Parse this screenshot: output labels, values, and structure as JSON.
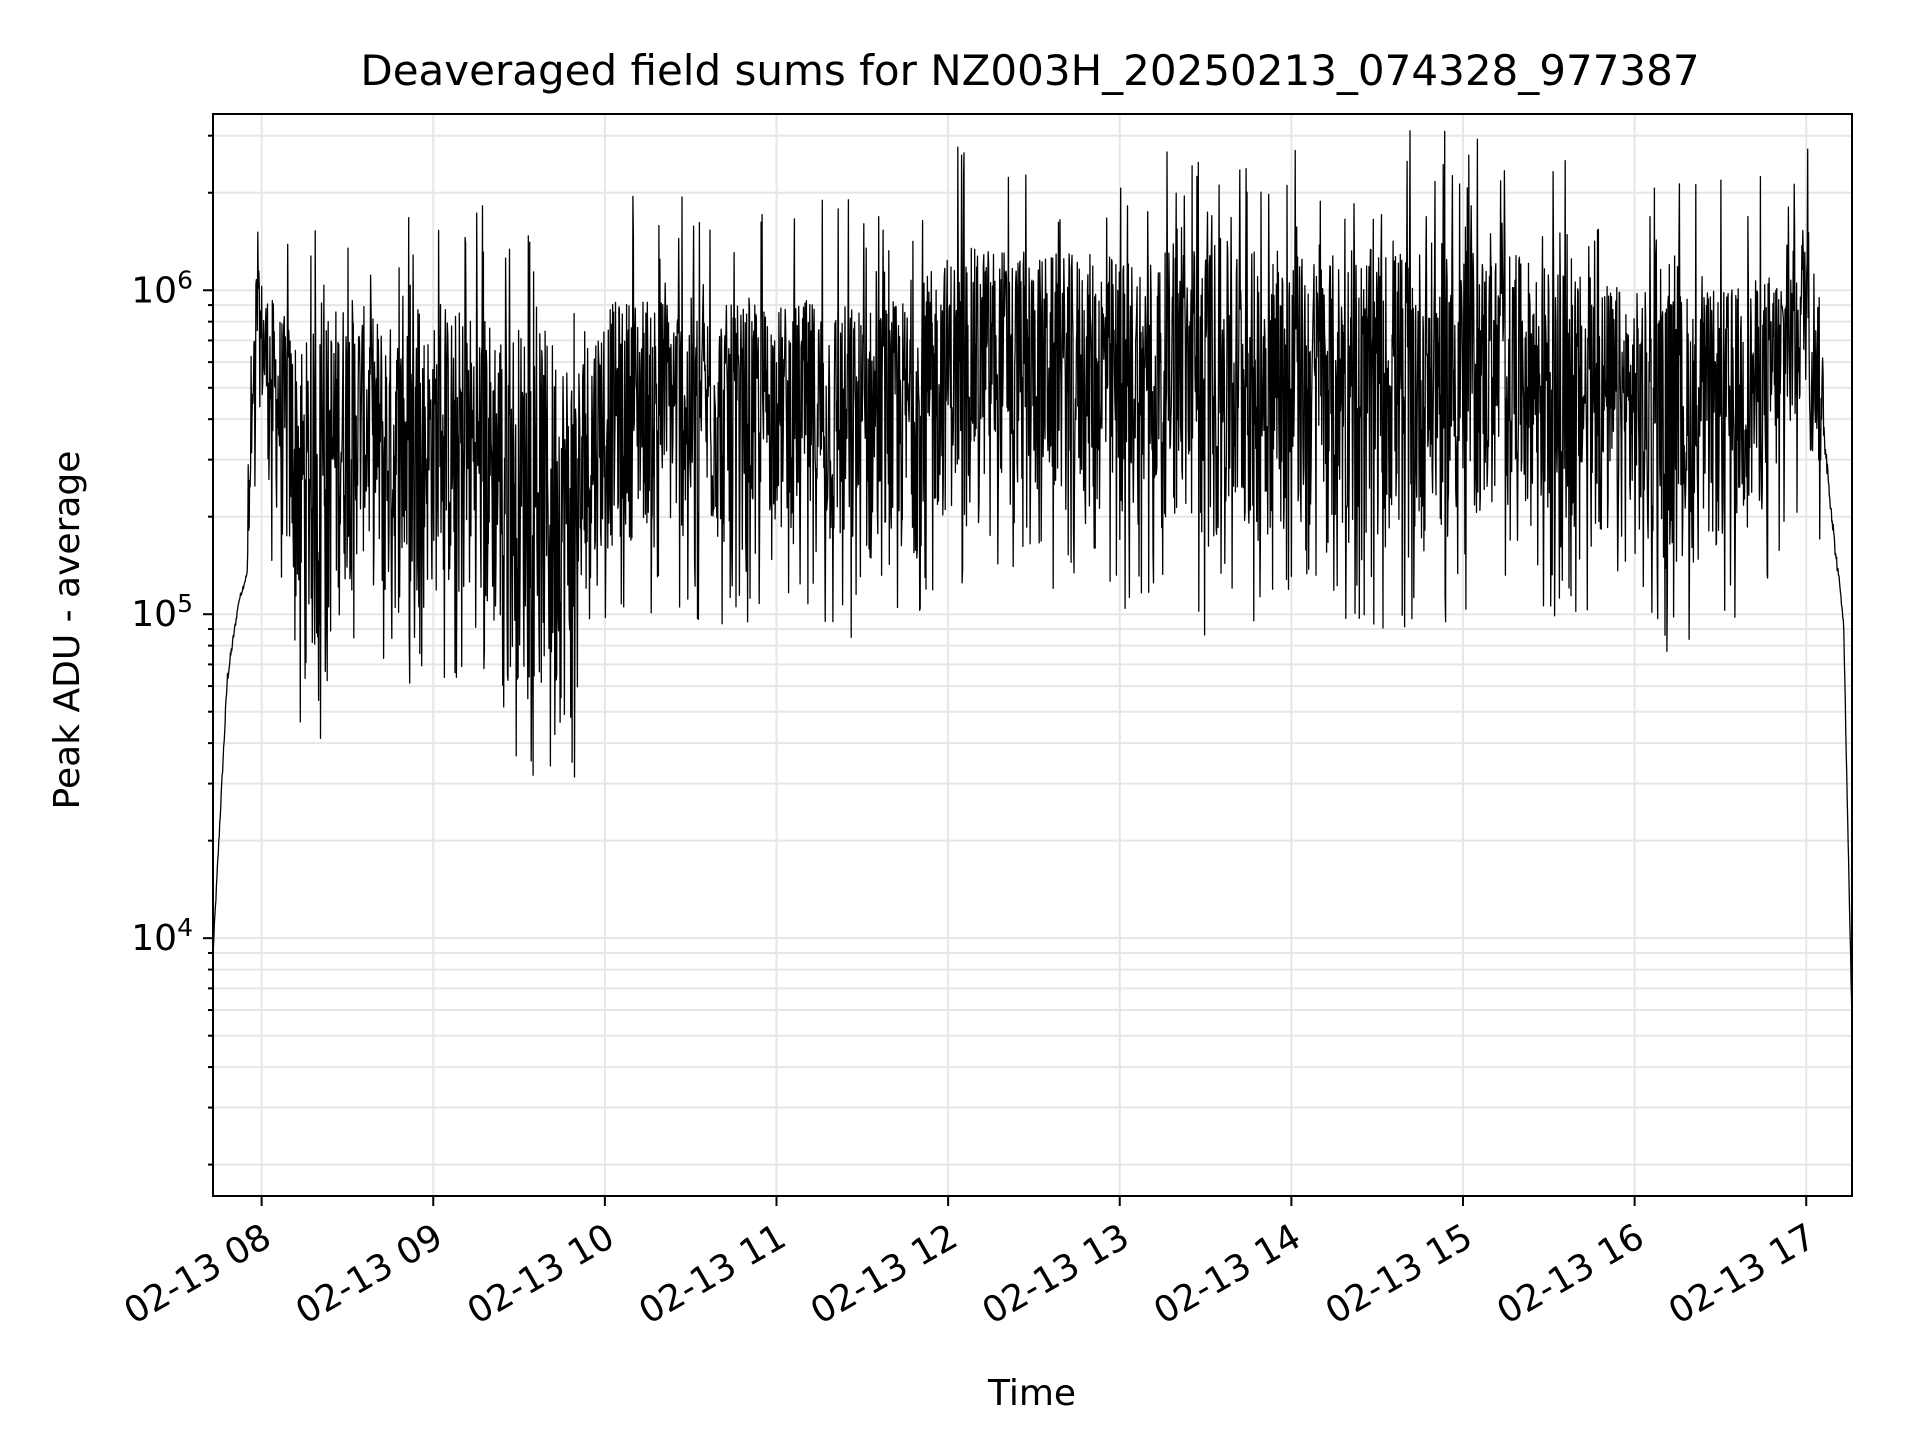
{
  "chart_data": {
    "type": "line",
    "title": "Deaveraged field sums for NZ003H_20250213_074328_977387",
    "xlabel": "Time",
    "ylabel": "Peak ADU - average",
    "yscale": "log",
    "ylim": [
      1600,
      3500000
    ],
    "xlim": [
      "02-13 07:43",
      "02-13 17:16"
    ],
    "grid": true,
    "line_color": "#000000",
    "x_ticks": [
      "02-13 08",
      "02-13 09",
      "02-13 10",
      "02-13 11",
      "02-13 12",
      "02-13 13",
      "02-13 14",
      "02-13 15",
      "02-13 16",
      "02-13 17"
    ],
    "y_ticks": [
      {
        "base": "10",
        "exp": "4",
        "value": 10000
      },
      {
        "base": "10",
        "exp": "5",
        "value": 100000
      },
      {
        "base": "10",
        "exp": "6",
        "value": 1000000
      }
    ],
    "series": [
      {
        "x": [
          "02-13 07:43",
          "02-13 07:48",
          "02-13 07:52",
          "02-13 07:55",
          "02-13 07:58",
          "02-13 08:00",
          "02-13 08:05",
          "02-13 08:10",
          "02-13 08:15",
          "02-13 08:20",
          "02-13 08:25",
          "02-13 08:30",
          "02-13 08:35",
          "02-13 08:40",
          "02-13 08:45",
          "02-13 08:50",
          "02-13 09:00",
          "02-13 09:10",
          "02-13 09:20",
          "02-13 09:30",
          "02-13 09:40",
          "02-13 09:45",
          "02-13 09:50",
          "02-13 09:55",
          "02-13 10:00",
          "02-13 10:15",
          "02-13 10:30",
          "02-13 10:45",
          "02-13 11:00",
          "02-13 11:15",
          "02-13 11:30",
          "02-13 11:45",
          "02-13 12:00",
          "02-13 12:15",
          "02-13 12:30",
          "02-13 12:45",
          "02-13 13:00",
          "02-13 13:15",
          "02-13 13:30",
          "02-13 13:45",
          "02-13 14:00",
          "02-13 14:15",
          "02-13 14:30",
          "02-13 14:45",
          "02-13 15:00",
          "02-13 15:15",
          "02-13 15:30",
          "02-13 15:45",
          "02-13 16:00",
          "02-13 16:15",
          "02-13 16:30",
          "02-13 16:45",
          "02-13 16:55",
          "02-13 17:00",
          "02-13 17:05",
          "02-13 17:10",
          "02-13 17:13",
          "02-13 17:16"
        ],
        "y_low": [
          8000,
          50000,
          100000,
          120000,
          500000,
          400000,
          200000,
          120000,
          70000,
          60000,
          80000,
          120000,
          150000,
          110000,
          90000,
          100000,
          110000,
          100000,
          80000,
          60000,
          50000,
          45000,
          40000,
          100000,
          150000,
          180000,
          160000,
          150000,
          200000,
          150000,
          120000,
          140000,
          200000,
          250000,
          220000,
          200000,
          180000,
          200000,
          150000,
          160000,
          170000,
          160000,
          160000,
          150000,
          180000,
          200000,
          180000,
          150000,
          140000,
          130000,
          150000,
          200000,
          300000,
          500000,
          250000,
          130000,
          80000,
          5000
        ],
        "y_high": [
          10000,
          80000,
          120000,
          150000,
          1200000,
          1100000,
          900000,
          800000,
          700000,
          800000,
          900000,
          1000000,
          900000,
          850000,
          800000,
          800000,
          800000,
          900000,
          850000,
          800000,
          750000,
          700000,
          650000,
          800000,
          900000,
          1000000,
          950000,
          900000,
          900000,
          950000,
          900000,
          950000,
          1300000,
          1400000,
          1300000,
          1300000,
          1300000,
          1300000,
          1500000,
          1350000,
          1300000,
          1300000,
          1350000,
          1400000,
          1400000,
          1300000,
          1200000,
          1100000,
          1000000,
          1000000,
          1000000,
          1100000,
          1300000,
          1800000,
          900000,
          200000,
          120000,
          6000
        ]
      }
    ]
  }
}
